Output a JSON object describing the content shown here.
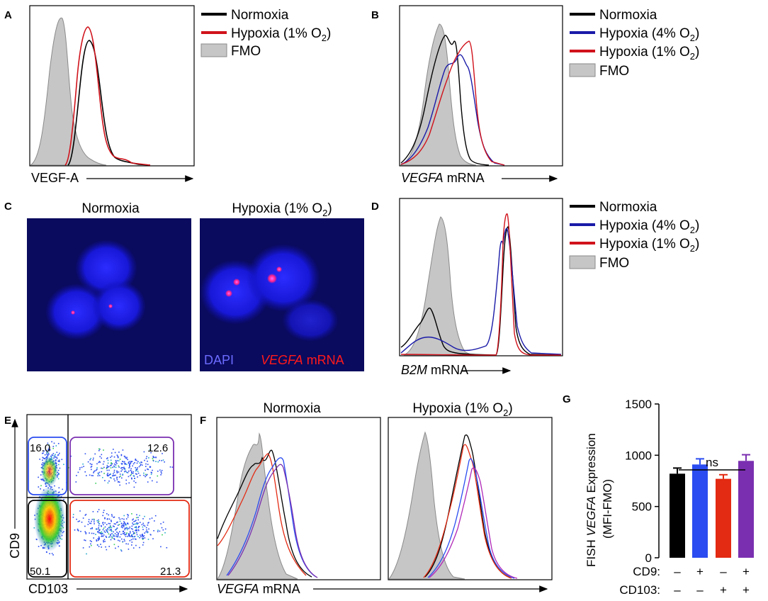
{
  "panels": {
    "A": {
      "label": "A",
      "legend": [
        "Normoxia",
        "Hypoxia (1% O",
        "2",
        ")",
        "FMO"
      ],
      "xaxis": "VEGF-A"
    },
    "B": {
      "label": "B",
      "legend": [
        "Normoxia",
        "Hypoxia (4% O",
        "2",
        ")",
        "Hypoxia (1% O",
        "2",
        ")",
        "FMO"
      ],
      "xaxis_italic": "VEGFA",
      "xaxis_rest": " mRNA"
    },
    "C": {
      "label": "C",
      "title_left": "Normoxia",
      "title_right": "Hypoxia (1% O",
      "title_sub": "2",
      "title_close": ")",
      "stain_dapi": "DAPI",
      "stain_gene": "VEGFA",
      "stain_rest": " mRNA"
    },
    "D": {
      "label": "D",
      "legend": [
        "Normoxia",
        "Hypoxia (4% O",
        "2",
        ")",
        "Hypoxia (1% O",
        "2",
        ")",
        "FMO"
      ],
      "xaxis_italic": "B2M",
      "xaxis_rest": " mRNA"
    },
    "E": {
      "label": "E",
      "yaxis": "CD9",
      "xaxis": "CD103",
      "gates": [
        "16.0",
        "12.6",
        "50.1",
        "21.3"
      ]
    },
    "F": {
      "label": "F",
      "title_left": "Normoxia",
      "title_right": "Hypoxia (1% O",
      "title_sub": "2",
      "title_close": ")",
      "xaxis_italic": "VEGFA",
      "xaxis_rest": " mRNA"
    },
    "G": {
      "label": "G",
      "ylabel_pre": "FISH ",
      "ylabel_italic": "VEGFA",
      "ylabel_post": " Expression",
      "ylabel2": "(MFI-FMO)",
      "sig": "ns",
      "row1_label": "CD9:",
      "row2_label": "CD103:",
      "row1": [
        "–",
        "+",
        "–",
        "+"
      ],
      "row2": [
        "–",
        "–",
        "+",
        "+"
      ]
    }
  },
  "colors": {
    "normoxia": "#000000",
    "hypoxia4": "#1a1aa8",
    "hypoxia1": "#d0121b",
    "fmo": "#c6c6c6",
    "dn": "#000000",
    "cd9": "#2a4cf0",
    "cd103": "#e32a12",
    "dp": "#7a2fb0",
    "magenta": "#b028b8"
  },
  "chart_data": {
    "type": "bar",
    "title": "",
    "ylabel": "FISH VEGFA Expression (MFI-FMO)",
    "categories": [
      "CD9- CD103-",
      "CD9+ CD103-",
      "CD9- CD103+",
      "CD9+ CD103+"
    ],
    "values": [
      820,
      910,
      770,
      945
    ],
    "errors": [
      55,
      55,
      40,
      60
    ],
    "ylim": [
      0,
      1500
    ],
    "yticks": [
      "0",
      "500",
      "1000",
      "1500"
    ],
    "yticks_values": [
      0,
      500,
      1000,
      1500
    ]
  }
}
